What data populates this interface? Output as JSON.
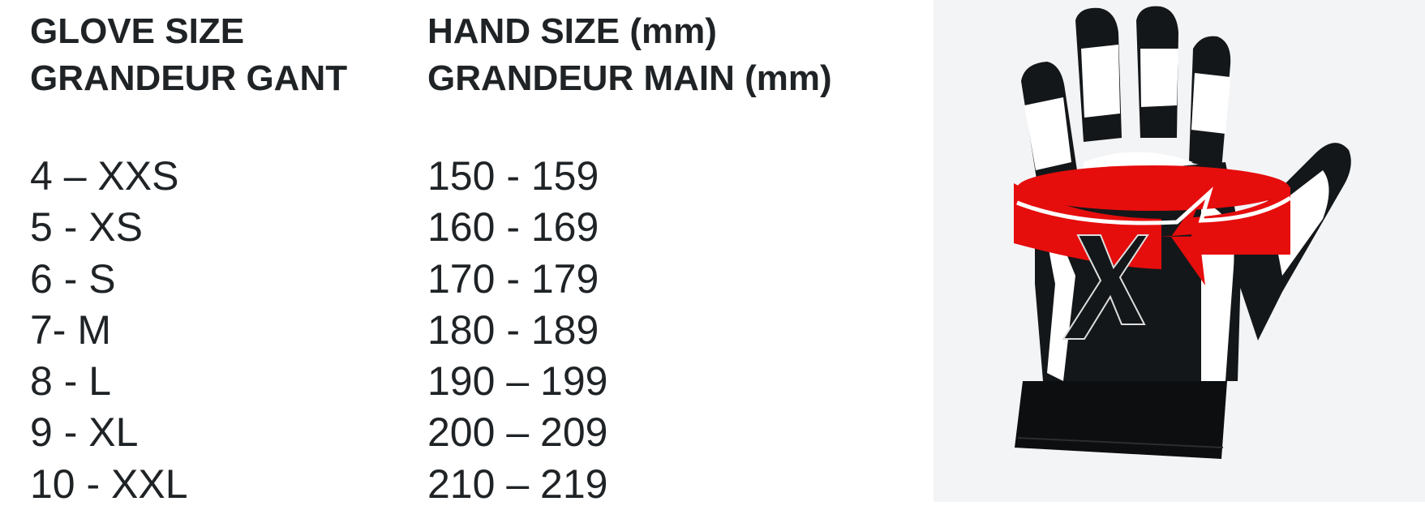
{
  "headers": {
    "glove_size": [
      "GLOVE SIZE",
      "GRANDEUR GANT"
    ],
    "hand_size": [
      "HAND SIZE (mm)",
      "GRANDEUR MAIN (mm)"
    ]
  },
  "rows": [
    {
      "glove": "4 – XXS",
      "hand": "150 - 159"
    },
    {
      "glove": "5 - XS",
      "hand": "160 - 169"
    },
    {
      "glove": "6 - S",
      "hand": "170 - 179"
    },
    {
      "glove": "7- M",
      "hand": "180 - 189"
    },
    {
      "glove": "8 - L",
      "hand": "190 – 199"
    },
    {
      "glove": "9 - XL",
      "hand": "200 – 209"
    },
    {
      "glove": "10 - XXL",
      "hand": "210 – 219"
    }
  ],
  "illustration": {
    "icon": "glove-with-measure-arrow-icon",
    "logo_letter": "X",
    "colors": {
      "arrow": "#e60d0d",
      "glove": "#141719",
      "panel": "#f3f4f6",
      "text": "#1f2326"
    }
  }
}
